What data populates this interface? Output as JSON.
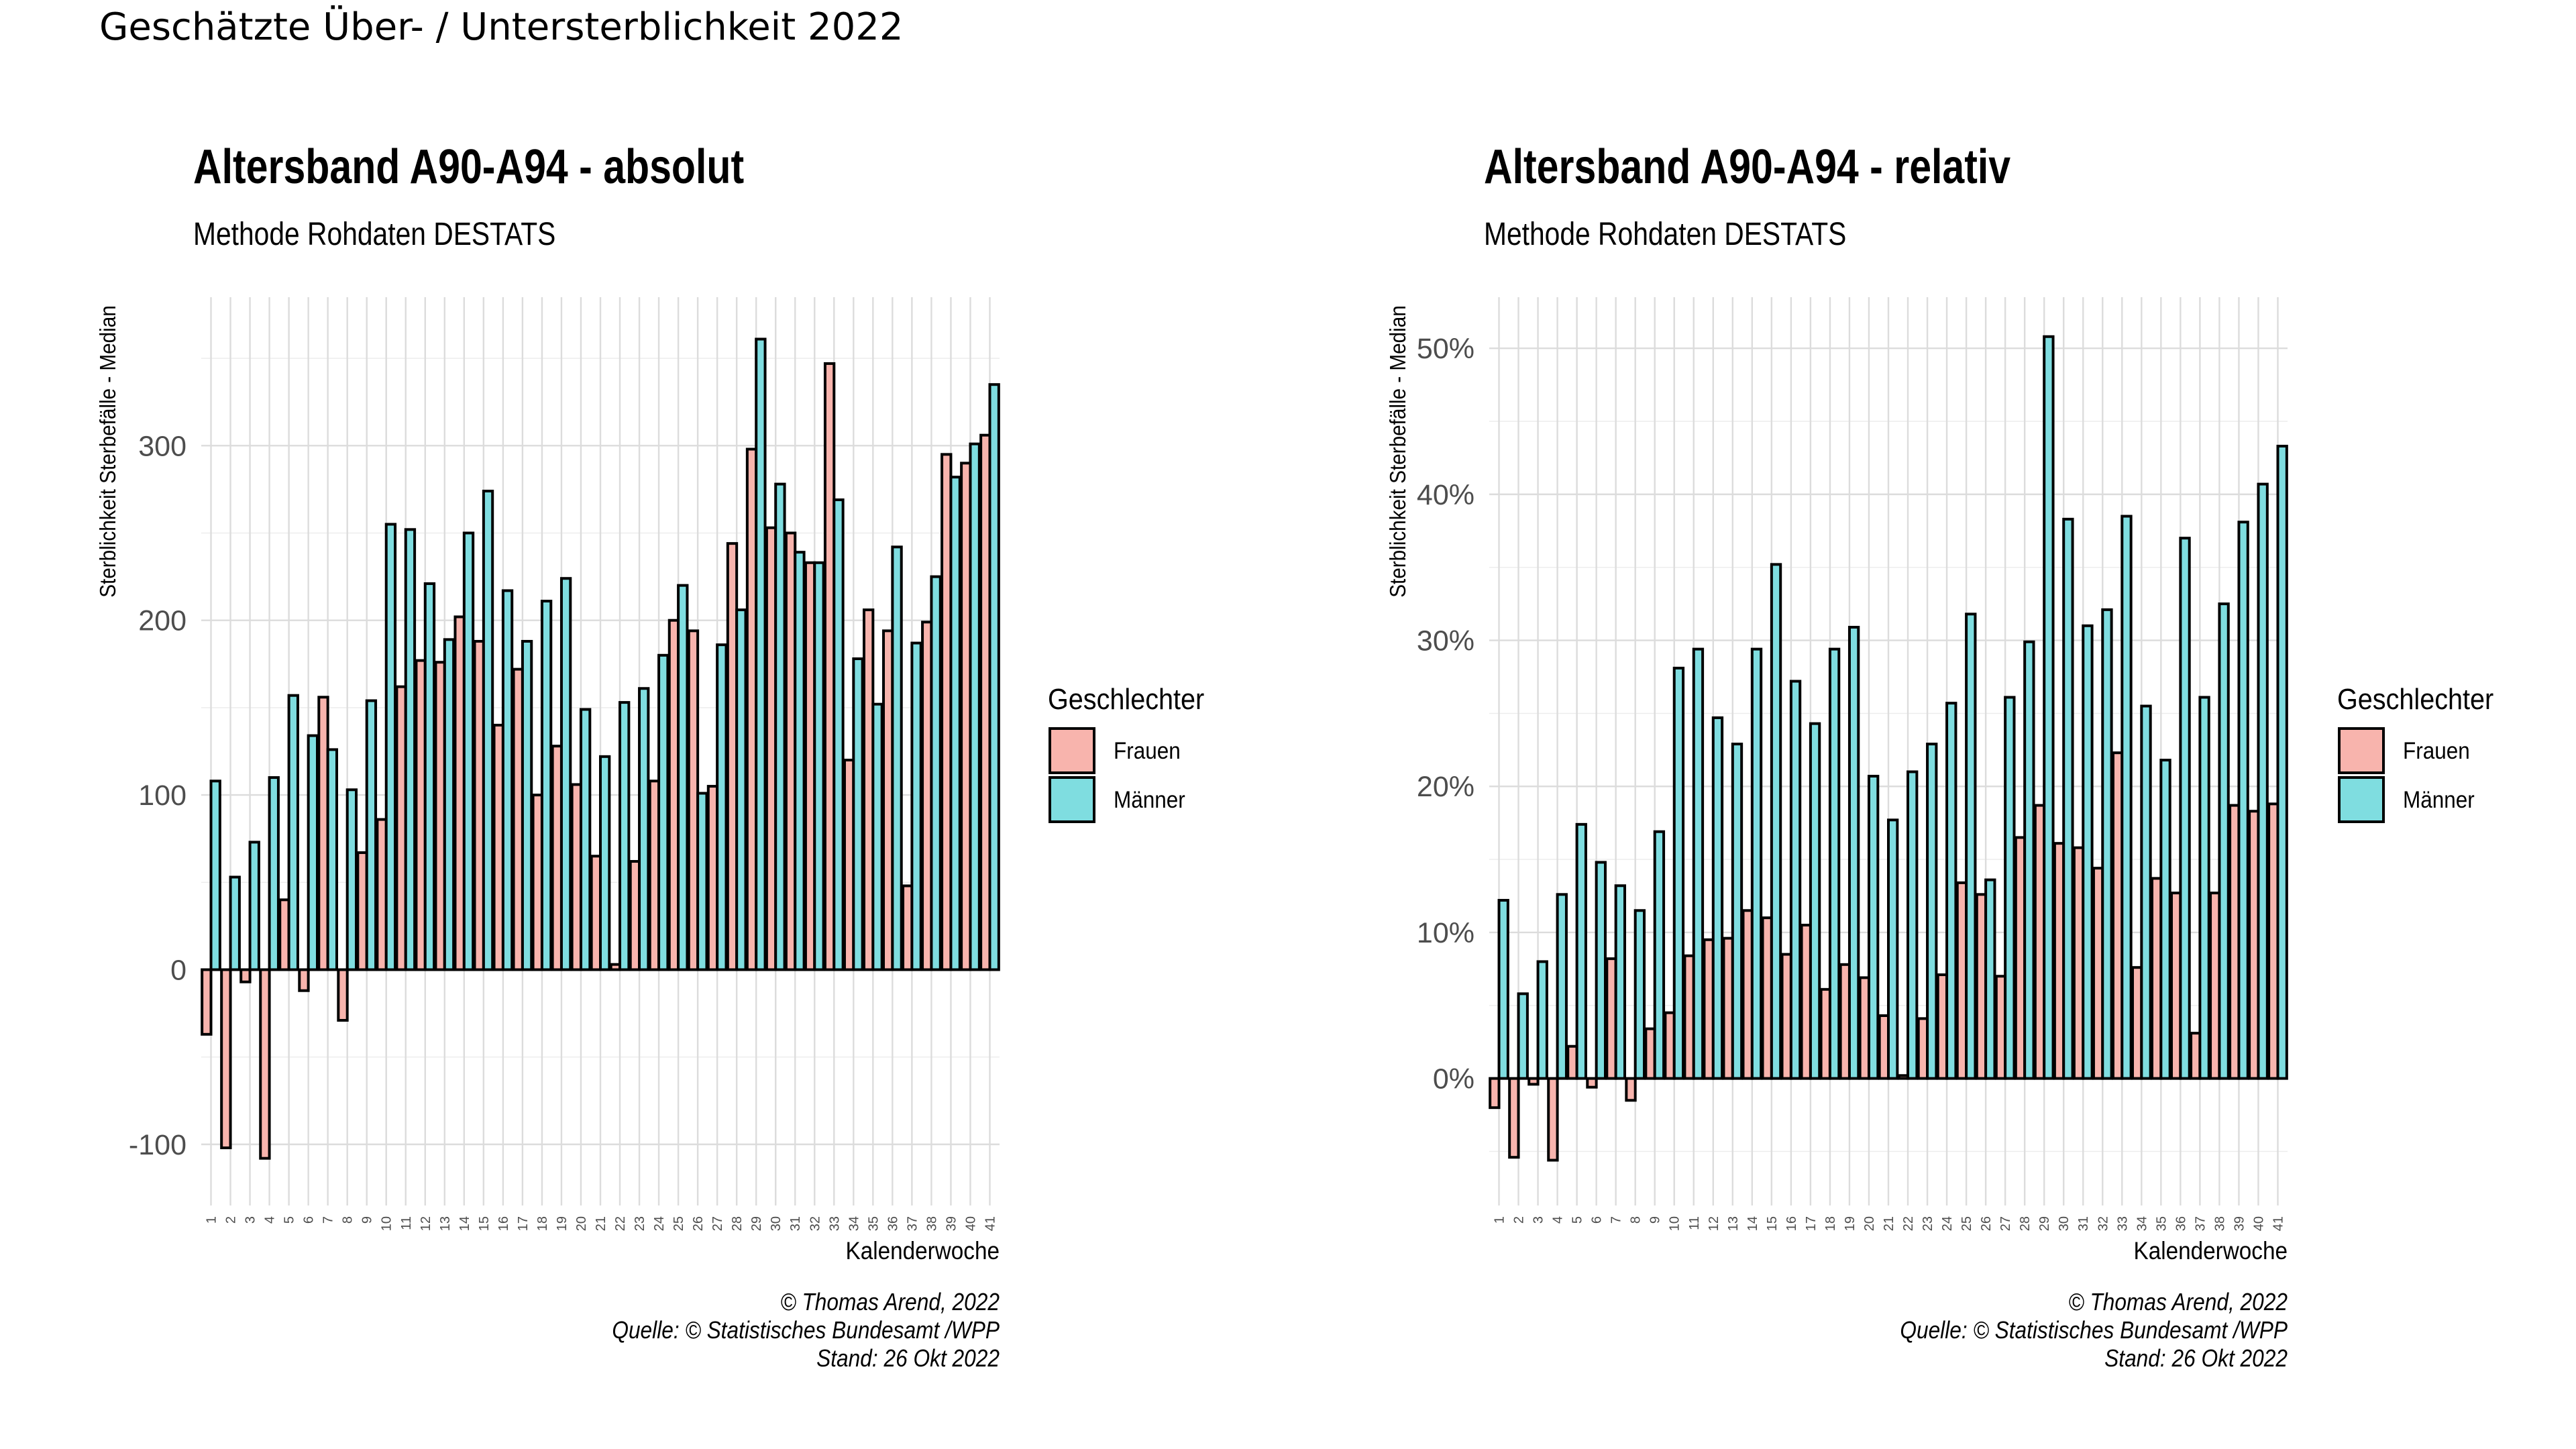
{
  "page": {
    "title": "Geschätzte Über- / Untersterblichkeit 2022"
  },
  "legend": {
    "title": "Geschlechter",
    "items": [
      {
        "label": "Frauen",
        "color": "#F8B4AD"
      },
      {
        "label": "Männer",
        "color": "#7FDDE0"
      }
    ]
  },
  "chart_data": [
    {
      "type": "bar",
      "title": "Altersband A90-A94 - absolut",
      "subtitle": "Methode Rohdaten DESTATS",
      "xlabel": "Kalenderwoche",
      "ylabel": "Sterblichkeit Sterbefälle - Median",
      "ylim": [
        -135,
        385
      ],
      "yticks": [
        -100,
        0,
        100,
        200,
        300
      ],
      "ytick_labels": [
        "-100",
        "0",
        "100",
        "200",
        "300"
      ],
      "grid": true,
      "legend_position": "right",
      "categories": [
        "1",
        "2",
        "3",
        "4",
        "5",
        "6",
        "7",
        "8",
        "9",
        "10",
        "11",
        "12",
        "13",
        "14",
        "15",
        "16",
        "17",
        "18",
        "19",
        "20",
        "21",
        "22",
        "23",
        "24",
        "25",
        "26",
        "27",
        "28",
        "29",
        "30",
        "31",
        "32",
        "33",
        "34",
        "35",
        "36",
        "37",
        "38",
        "39",
        "40",
        "41"
      ],
      "series": [
        {
          "name": "Frauen",
          "values": [
            -37,
            -102,
            -7,
            -108,
            40,
            -12,
            156,
            -29,
            67,
            86,
            162,
            177,
            176,
            202,
            188,
            140,
            172,
            100,
            128,
            106,
            65,
            3,
            62,
            108,
            200,
            194,
            105,
            244,
            298,
            253,
            250,
            233,
            347,
            120,
            206,
            194,
            48,
            199,
            295,
            290,
            306
          ]
        },
        {
          "name": "Männer",
          "values": [
            108,
            53,
            73,
            110,
            157,
            134,
            126,
            103,
            154,
            255,
            252,
            221,
            189,
            250,
            274,
            217,
            188,
            211,
            224,
            149,
            122,
            153,
            161,
            180,
            220,
            101,
            186,
            206,
            361,
            278,
            239,
            233,
            269,
            178,
            152,
            242,
            187,
            225,
            282,
            301,
            335
          ]
        }
      ],
      "caption": [
        "© Thomas Arend, 2022",
        "Quelle: © Statistisches Bundesamt /WPP",
        "Stand: 26 Okt 2022"
      ]
    },
    {
      "type": "bar",
      "title": "Altersband A90-A94 - relativ",
      "subtitle": "Methode Rohdaten DESTATS",
      "xlabel": "Kalenderwoche",
      "ylabel": "Sterblichkeit Sterbefälle - Median",
      "ylim": [
        -0.087,
        0.535
      ],
      "yticks": [
        0,
        0.1,
        0.2,
        0.3,
        0.4,
        0.5
      ],
      "ytick_labels": [
        "0%",
        "10%",
        "20%",
        "30%",
        "40%",
        "50%"
      ],
      "grid": true,
      "legend_position": "right",
      "categories": [
        "1",
        "2",
        "3",
        "4",
        "5",
        "6",
        "7",
        "8",
        "9",
        "10",
        "11",
        "12",
        "13",
        "14",
        "15",
        "16",
        "17",
        "18",
        "19",
        "20",
        "21",
        "22",
        "23",
        "24",
        "25",
        "26",
        "27",
        "28",
        "29",
        "30",
        "31",
        "32",
        "33",
        "34",
        "35",
        "36",
        "37",
        "38",
        "39",
        "40",
        "41"
      ],
      "series": [
        {
          "name": "Frauen",
          "values": [
            -0.02,
            -0.054,
            -0.004,
            -0.056,
            0.022,
            -0.006,
            0.082,
            -0.015,
            0.034,
            0.045,
            0.084,
            0.095,
            0.096,
            0.115,
            0.11,
            0.085,
            0.105,
            0.061,
            0.078,
            0.069,
            0.043,
            0.002,
            0.041,
            0.071,
            0.134,
            0.126,
            0.07,
            0.165,
            0.187,
            0.161,
            0.158,
            0.144,
            0.223,
            0.076,
            0.137,
            0.127,
            0.031,
            0.127,
            0.187,
            0.183,
            0.188
          ]
        },
        {
          "name": "Männer",
          "values": [
            0.122,
            0.058,
            0.08,
            0.126,
            0.174,
            0.148,
            0.132,
            0.115,
            0.169,
            0.281,
            0.294,
            0.247,
            0.229,
            0.294,
            0.352,
            0.272,
            0.243,
            0.294,
            0.309,
            0.207,
            0.177,
            0.21,
            0.229,
            0.257,
            0.318,
            0.136,
            0.261,
            0.299,
            0.508,
            0.383,
            0.31,
            0.321,
            0.385,
            0.255,
            0.218,
            0.37,
            0.261,
            0.325,
            0.381,
            0.407,
            0.433
          ]
        }
      ],
      "caption": [
        "© Thomas Arend, 2022",
        "Quelle: © Statistisches Bundesamt /WPP",
        "Stand: 26 Okt 2022"
      ]
    }
  ]
}
